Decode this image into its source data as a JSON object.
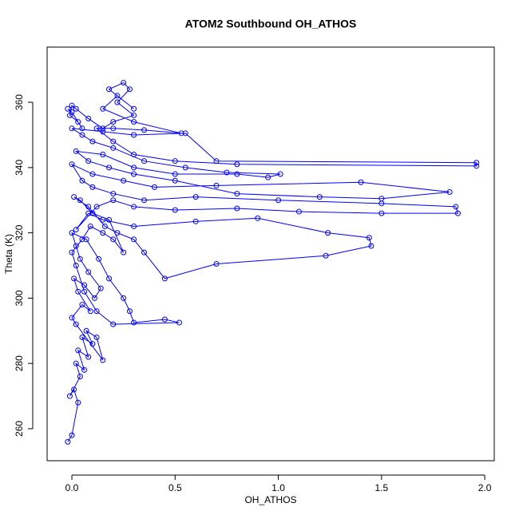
{
  "chart_data": {
    "type": "scatter",
    "title": "ATOM2 Southbound OH_ATHOS",
    "x_label": "OH_ATHOS",
    "y_label": "Theta (K)",
    "connect": true,
    "grid": false,
    "xlim": [
      -0.12,
      2.046
    ],
    "ylim": [
      250.2,
      376.9
    ],
    "xticks": [
      {
        "value": 0,
        "label": "0.0"
      },
      0.5,
      {
        "value": 1,
        "label": "1.0"
      },
      1.5,
      {
        "value": 2,
        "label": "2.0"
      }
    ],
    "yticks": [
      260,
      280,
      300,
      320,
      340,
      360
    ],
    "series": [
      {
        "color": "#0000ff",
        "x": [
          -0.02,
          0.0,
          0.03,
          0.01,
          -0.01,
          0.04,
          0.02,
          0.06,
          0.03,
          0.08,
          0.05,
          0.1,
          0.07,
          0.12,
          0.15,
          0.02,
          0.0,
          0.05,
          0.09,
          0.03,
          0.01,
          0.06,
          0.11,
          0.14,
          0.08,
          0.04,
          0.02,
          0.0,
          0.07,
          0.13,
          0.18,
          0.25,
          0.28,
          0.3,
          0.45,
          0.52,
          0.2,
          0.12,
          0.06,
          0.02,
          0.0,
          0.05,
          0.09,
          0.15,
          0.2,
          0.25,
          0.18,
          0.1,
          0.04,
          0.01,
          0.08,
          0.16,
          0.22,
          0.3,
          0.35,
          0.45,
          0.7,
          1.23,
          1.45,
          1.44,
          1.24,
          0.9,
          0.6,
          0.3,
          0.15,
          0.08,
          0.02,
          0.12,
          0.2,
          0.3,
          0.5,
          0.8,
          1.1,
          1.5,
          1.87,
          1.86,
          1.5,
          1.0,
          0.6,
          0.35,
          0.2,
          0.1,
          0.05,
          0.0,
          0.1,
          0.25,
          0.4,
          0.7,
          1.4,
          1.83,
          1.5,
          1.2,
          0.8,
          0.5,
          0.3,
          0.18,
          0.08,
          0.02,
          0.15,
          0.3,
          0.5,
          0.8,
          0.95,
          1.01,
          0.75,
          0.55,
          0.35,
          0.2,
          0.1,
          0.05,
          0.0,
          0.15,
          0.3,
          0.55,
          0.7,
          1.96,
          1.96,
          0.8,
          0.5,
          0.3,
          0.2,
          0.12,
          0.2,
          0.35,
          0.53,
          0.3,
          0.15,
          0.22,
          0.3,
          0.18,
          0.25,
          0.28,
          0.22,
          0.3,
          0.2,
          0.15,
          0.08,
          0.02,
          0.0,
          -0.01,
          0.03,
          0.05,
          0.0,
          -0.02
        ],
        "values": [
          256,
          258,
          268,
          272,
          270,
          276,
          280,
          278,
          284,
          282,
          288,
          286,
          290,
          288,
          281,
          292,
          294,
          298,
          296,
          302,
          306,
          304,
          300,
          303,
          308,
          312,
          316,
          320,
          318,
          312,
          306,
          300,
          296,
          292.5,
          293.5,
          292.5,
          292,
          296,
          302,
          310,
          314,
          318,
          322,
          320,
          318,
          314,
          324,
          326,
          330,
          331,
          328,
          322,
          320,
          318,
          314,
          306,
          310.5,
          313,
          316,
          318.5,
          320,
          324.5,
          323.5,
          322,
          324,
          326,
          321,
          328,
          330,
          328,
          327,
          327.5,
          326.5,
          326,
          326,
          328,
          329,
          330,
          331,
          330,
          332,
          334,
          336,
          341,
          338,
          336,
          334,
          334.5,
          335.5,
          332.5,
          330.5,
          331,
          332,
          336,
          338,
          340,
          342,
          345,
          344,
          340,
          338,
          338,
          337,
          338,
          338.5,
          340,
          342,
          346,
          348,
          350,
          352,
          351,
          350,
          350.5,
          342,
          341.5,
          340.5,
          341,
          342,
          344,
          348,
          352,
          352,
          351.5,
          350.5,
          354,
          358,
          362,
          358,
          364,
          366,
          364,
          360,
          356,
          354,
          352,
          355,
          358,
          359,
          356,
          354,
          352,
          357,
          358
        ]
      }
    ]
  }
}
